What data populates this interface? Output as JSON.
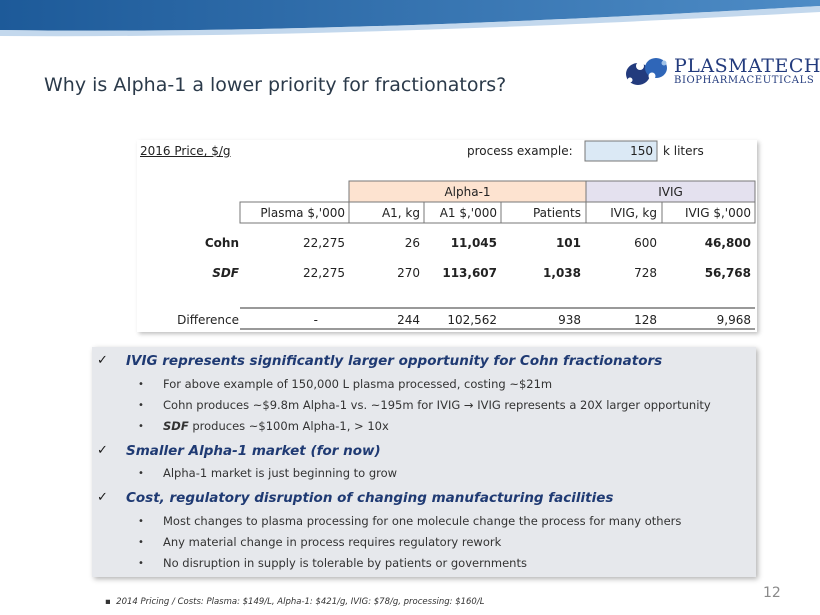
{
  "title": "Why is Alpha-1 a lower priority for fractionators?",
  "logo": {
    "name": "PLASMATECH",
    "sub": "BIOPHARMACEUTICALS"
  },
  "colors": {
    "band": "#2d6aa5",
    "heading": "#1f3a73",
    "alpha_header": "#fde3d0",
    "ivig_header": "#e4e1ef",
    "input_cell": "#dbe9f5"
  },
  "table": {
    "price_label": "2016 Price, $/g",
    "process_label": "process example:",
    "process_value": "150",
    "process_unit": "k liters",
    "group_alpha": "Alpha-1",
    "group_ivig": "IVIG",
    "headers": [
      "Plasma $,'000",
      "A1, kg",
      "A1 $,'000",
      "Patients",
      "IVIG, kg",
      "IVIG $,'000"
    ],
    "rows": [
      {
        "label": "Cohn",
        "values": [
          "22,275",
          "26",
          "11,045",
          "101",
          "600",
          "46,800"
        ]
      },
      {
        "label": "SDF",
        "values": [
          "22,275",
          "270",
          "113,607",
          "1,038",
          "728",
          "56,768"
        ]
      },
      {
        "label": "Difference",
        "values": [
          "-",
          "244",
          "102,562",
          "938",
          "128",
          "9,968"
        ]
      }
    ]
  },
  "bullets": [
    {
      "heading": "IVIG represents significantly larger opportunity for Cohn fractionators",
      "subs": [
        "For above example of 150,000  L plasma processed, costing ~$21m",
        "Cohn produces ~$9.8m  Alpha-1 vs. ~195m  for IVIG → IVIG represents a 20X larger opportunity",
        "produces ~$100m  Alpha-1, > 10x"
      ],
      "sub3_lead": "SDF"
    },
    {
      "heading": "Smaller Alpha-1 market (for now)",
      "subs": [
        "Alpha-1 market is just beginning to grow"
      ]
    },
    {
      "heading": "Cost, regulatory disruption of changing manufacturing facilities",
      "subs": [
        "Most changes to plasma processing for one molecule change the process for many  others",
        "Any material change in process requires regulatory rework",
        "No disruption in supply is tolerable by patients or governments"
      ]
    }
  ],
  "page_number": "12",
  "footnote": "2014 Pricing / Costs:   Plasma: $149/L, Alpha-1: $421/g, IVIG: $78/g, processing: $160/L"
}
